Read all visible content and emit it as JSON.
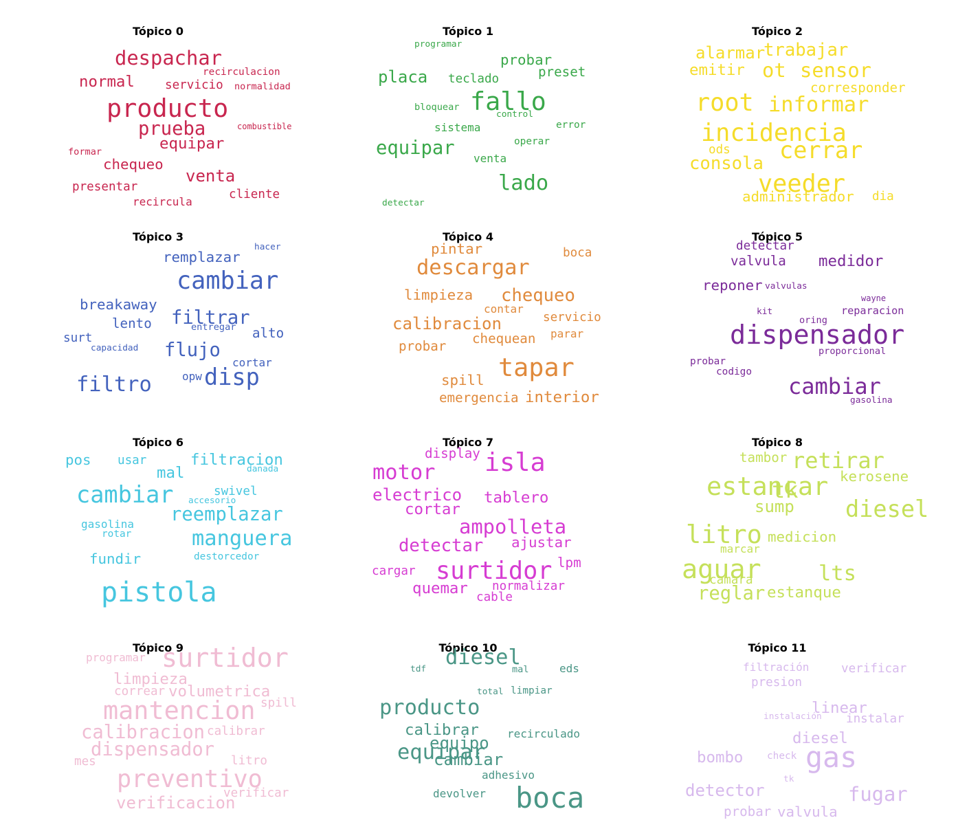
{
  "topics": [
    {
      "title": "Tópico 0",
      "color": "#c8264f",
      "words": [
        {
          "text": "despachar",
          "size": 1.8
        },
        {
          "text": "recirculacion",
          "size": 0.9
        },
        {
          "text": "normal",
          "size": 1.4
        },
        {
          "text": "servicio",
          "size": 1.1
        },
        {
          "text": "normalidad",
          "size": 0.85
        },
        {
          "text": "producto",
          "size": 2.3
        },
        {
          "text": "prueba",
          "size": 1.7
        },
        {
          "text": "combustible",
          "size": 0.75
        },
        {
          "text": "equipar",
          "size": 1.4
        },
        {
          "text": "formar",
          "size": 0.85
        },
        {
          "text": "chequeo",
          "size": 1.3
        },
        {
          "text": "venta",
          "size": 1.5
        },
        {
          "text": "presentar",
          "size": 1.1
        },
        {
          "text": "cliente",
          "size": 1.1
        },
        {
          "text": "recircula",
          "size": 1.0
        }
      ]
    },
    {
      "title": "Tópico 1",
      "color": "#3aa84a",
      "words": [
        {
          "text": "programar",
          "size": 0.8
        },
        {
          "text": "probar",
          "size": 1.3
        },
        {
          "text": "preset",
          "size": 1.2
        },
        {
          "text": "placa",
          "size": 1.5
        },
        {
          "text": "teclado",
          "size": 1.1
        },
        {
          "text": "fallo",
          "size": 2.3
        },
        {
          "text": "bloquear",
          "size": 0.85
        },
        {
          "text": "control",
          "size": 0.8
        },
        {
          "text": "error",
          "size": 0.9
        },
        {
          "text": "sistema",
          "size": 1.0
        },
        {
          "text": "operar",
          "size": 0.9
        },
        {
          "text": "equipar",
          "size": 1.7
        },
        {
          "text": "venta",
          "size": 1.0
        },
        {
          "text": "lado",
          "size": 1.9
        },
        {
          "text": "detectar",
          "size": 0.8
        }
      ]
    },
    {
      "title": "Tópico 2",
      "color": "#f5dc2a",
      "words": [
        {
          "text": "alarmar",
          "size": 1.5
        },
        {
          "text": "trabajar",
          "size": 1.6
        },
        {
          "text": "emitir",
          "size": 1.4
        },
        {
          "text": "ot",
          "size": 1.8
        },
        {
          "text": "sensor",
          "size": 1.8
        },
        {
          "text": "corresponder",
          "size": 1.2
        },
        {
          "text": "root",
          "size": 2.2
        },
        {
          "text": "informar",
          "size": 1.9
        },
        {
          "text": "incidencia",
          "size": 2.2
        },
        {
          "text": "ods",
          "size": 1.1
        },
        {
          "text": "cerrar",
          "size": 2.1
        },
        {
          "text": "consola",
          "size": 1.6
        },
        {
          "text": "veeder",
          "size": 2.2
        },
        {
          "text": "administrador",
          "size": 1.3
        },
        {
          "text": "dia",
          "size": 1.1
        }
      ]
    },
    {
      "title": "Tópico 3",
      "color": "#4362bd",
      "words": [
        {
          "text": "hacer",
          "size": 0.8
        },
        {
          "text": "remplazar",
          "size": 1.3
        },
        {
          "text": "cambiar",
          "size": 2.2
        },
        {
          "text": "breakaway",
          "size": 1.3
        },
        {
          "text": "filtrar",
          "size": 1.7
        },
        {
          "text": "lento",
          "size": 1.2
        },
        {
          "text": "entregar",
          "size": 0.85
        },
        {
          "text": "alto",
          "size": 1.2
        },
        {
          "text": "surt",
          "size": 1.1
        },
        {
          "text": "flujo",
          "size": 1.7
        },
        {
          "text": "capacidad",
          "size": 0.8
        },
        {
          "text": "cortar",
          "size": 1.0
        },
        {
          "text": "opw",
          "size": 1.0
        },
        {
          "text": "disp",
          "size": 2.1
        },
        {
          "text": "filtro",
          "size": 1.9
        }
      ]
    },
    {
      "title": "Tópico 4",
      "color": "#e08a3c",
      "words": [
        {
          "text": "pintar",
          "size": 1.3
        },
        {
          "text": "boca",
          "size": 1.1
        },
        {
          "text": "descargar",
          "size": 1.9
        },
        {
          "text": "limpieza",
          "size": 1.3
        },
        {
          "text": "chequeo",
          "size": 1.6
        },
        {
          "text": "contar",
          "size": 1.0
        },
        {
          "text": "calibracion",
          "size": 1.5
        },
        {
          "text": "servicio",
          "size": 1.1
        },
        {
          "text": "parar",
          "size": 1.0
        },
        {
          "text": "chequean",
          "size": 1.2
        },
        {
          "text": "probar",
          "size": 1.2
        },
        {
          "text": "tapar",
          "size": 2.3
        },
        {
          "text": "spill",
          "size": 1.3
        },
        {
          "text": "emergencia",
          "size": 1.2
        },
        {
          "text": "interior",
          "size": 1.4
        }
      ]
    },
    {
      "title": "Tópico 5",
      "color": "#7b2b99",
      "words": [
        {
          "text": "detectar",
          "size": 1.1
        },
        {
          "text": "valvula",
          "size": 1.2
        },
        {
          "text": "medidor",
          "size": 1.4
        },
        {
          "text": "reponer",
          "size": 1.3
        },
        {
          "text": "valvulas",
          "size": 0.8
        },
        {
          "text": "wayne",
          "size": 0.75
        },
        {
          "text": "kit",
          "size": 0.8
        },
        {
          "text": "oring",
          "size": 0.85
        },
        {
          "text": "reparacion",
          "size": 0.95
        },
        {
          "text": "dispensador",
          "size": 2.4
        },
        {
          "text": "probar",
          "size": 0.9
        },
        {
          "text": "proporcional",
          "size": 0.85
        },
        {
          "text": "codigo",
          "size": 0.9
        },
        {
          "text": "cambiar",
          "size": 2.0
        },
        {
          "text": "gasolina",
          "size": 0.8
        }
      ]
    },
    {
      "title": "Tópico 6",
      "color": "#46c6df",
      "words": [
        {
          "text": "pos",
          "size": 1.3
        },
        {
          "text": "usar",
          "size": 1.1
        },
        {
          "text": "filtracion",
          "size": 1.4
        },
        {
          "text": "mal",
          "size": 1.4
        },
        {
          "text": "danada",
          "size": 0.8
        },
        {
          "text": "cambiar",
          "size": 2.1
        },
        {
          "text": "swivel",
          "size": 1.1
        },
        {
          "text": "accesorio",
          "size": 0.8
        },
        {
          "text": "reemplazar",
          "size": 1.7
        },
        {
          "text": "gasolina",
          "size": 1.0
        },
        {
          "text": "rotar",
          "size": 0.9
        },
        {
          "text": "manguera",
          "size": 1.9
        },
        {
          "text": "destorcedor",
          "size": 0.9
        },
        {
          "text": "fundir",
          "size": 1.3
        },
        {
          "text": "pistola",
          "size": 2.5
        }
      ]
    },
    {
      "title": "Tópico 7",
      "color": "#d63cd2",
      "words": [
        {
          "text": "display",
          "size": 1.2
        },
        {
          "text": "isla",
          "size": 2.3
        },
        {
          "text": "motor",
          "size": 1.9
        },
        {
          "text": "electrico",
          "size": 1.5
        },
        {
          "text": "tablero",
          "size": 1.4
        },
        {
          "text": "cortar",
          "size": 1.4
        },
        {
          "text": "ampolleta",
          "size": 1.8
        },
        {
          "text": "detectar",
          "size": 1.6
        },
        {
          "text": "ajustar",
          "size": 1.3
        },
        {
          "text": "surtidor",
          "size": 2.2
        },
        {
          "text": "lpm",
          "size": 1.2
        },
        {
          "text": "cargar",
          "size": 1.1
        },
        {
          "text": "quemar",
          "size": 1.4
        },
        {
          "text": "normalizar",
          "size": 1.1
        },
        {
          "text": "cable",
          "size": 1.1
        }
      ]
    },
    {
      "title": "Tópico 8",
      "color": "#c5e05a",
      "words": [
        {
          "text": "tambor",
          "size": 1.2
        },
        {
          "text": "retirar",
          "size": 2.0
        },
        {
          "text": "estancar",
          "size": 2.3
        },
        {
          "text": "kerosene",
          "size": 1.3
        },
        {
          "text": "tk",
          "size": 2.0
        },
        {
          "text": "diesel",
          "size": 2.1
        },
        {
          "text": "sump",
          "size": 1.5
        },
        {
          "text": "litro",
          "size": 2.3
        },
        {
          "text": "medicion",
          "size": 1.3
        },
        {
          "text": "aguar",
          "size": 2.4
        },
        {
          "text": "marcar",
          "size": 1.0
        },
        {
          "text": "lts",
          "size": 1.9
        },
        {
          "text": "camara",
          "size": 1.1
        },
        {
          "text": "reglar",
          "size": 1.7
        },
        {
          "text": "estanque",
          "size": 1.4
        }
      ]
    },
    {
      "title": "Tópico 9",
      "color": "#f0bcd3",
      "words": [
        {
          "text": "programar",
          "size": 1.0
        },
        {
          "text": "surtidor",
          "size": 2.4
        },
        {
          "text": "limpieza",
          "size": 1.4
        },
        {
          "text": "correar",
          "size": 1.1
        },
        {
          "text": "volumetrica",
          "size": 1.4
        },
        {
          "text": "spill",
          "size": 1.1
        },
        {
          "text": "mantencion",
          "size": 2.3
        },
        {
          "text": "calibracion",
          "size": 1.7
        },
        {
          "text": "calibrar",
          "size": 1.1
        },
        {
          "text": "dispensador",
          "size": 1.7
        },
        {
          "text": "mes",
          "size": 1.1
        },
        {
          "text": "litro",
          "size": 1.1
        },
        {
          "text": "preventivo",
          "size": 2.2
        },
        {
          "text": "verificar",
          "size": 1.1
        },
        {
          "text": "verificacion",
          "size": 1.5
        }
      ]
    },
    {
      "title": "Tópico 10",
      "color": "#4a9686",
      "words": [
        {
          "text": "diesel",
          "size": 1.9
        },
        {
          "text": "tdf",
          "size": 0.8
        },
        {
          "text": "eds",
          "size": 1.0
        },
        {
          "text": "mal",
          "size": 0.85
        },
        {
          "text": "limpiar",
          "size": 0.9
        },
        {
          "text": "producto",
          "size": 1.9
        },
        {
          "text": "total",
          "size": 0.8
        },
        {
          "text": "calibrar",
          "size": 1.4
        },
        {
          "text": "equipo",
          "size": 1.5
        },
        {
          "text": "recirculado",
          "size": 1.0
        },
        {
          "text": "equipar",
          "size": 1.9
        },
        {
          "text": "cambiar",
          "size": 1.5
        },
        {
          "text": "adhesivo",
          "size": 1.0
        },
        {
          "text": "boca",
          "size": 2.6
        },
        {
          "text": "devolver",
          "size": 1.0
        }
      ]
    },
    {
      "title": "Tópico 11",
      "color": "#d7b9ed",
      "words": [
        {
          "text": "filtración",
          "size": 1.0
        },
        {
          "text": "verificar",
          "size": 1.1
        },
        {
          "text": "presion",
          "size": 1.1
        },
        {
          "text": "linear",
          "size": 1.4
        },
        {
          "text": "instalación",
          "size": 0.8
        },
        {
          "text": "instalar",
          "size": 1.1
        },
        {
          "text": "diesel",
          "size": 1.4
        },
        {
          "text": "bombo",
          "size": 1.4
        },
        {
          "text": "check",
          "size": 0.9
        },
        {
          "text": "gas",
          "size": 2.6
        },
        {
          "text": "tk",
          "size": 0.8
        },
        {
          "text": "detector",
          "size": 1.5
        },
        {
          "text": "fugar",
          "size": 1.8
        },
        {
          "text": "probar",
          "size": 1.2
        },
        {
          "text": "valvula",
          "size": 1.3
        }
      ]
    }
  ]
}
